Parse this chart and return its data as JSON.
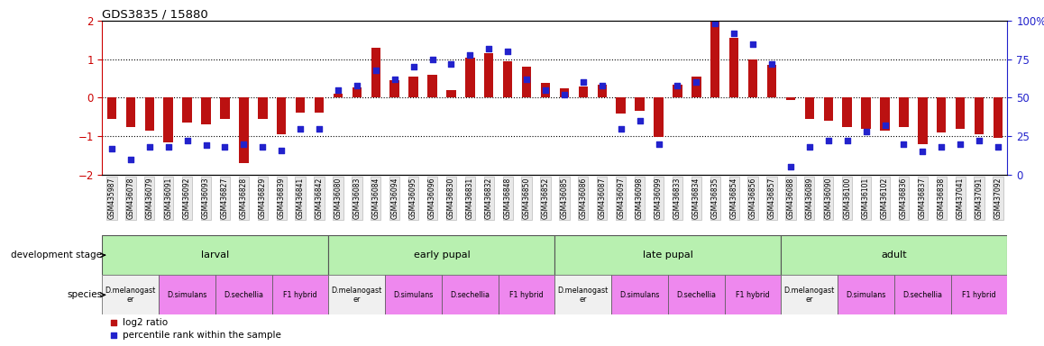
{
  "title": "GDS3835 / 15880",
  "samples": [
    "GSM435987",
    "GSM436078",
    "GSM436079",
    "GSM436091",
    "GSM436092",
    "GSM436093",
    "GSM436827",
    "GSM436828",
    "GSM436829",
    "GSM436839",
    "GSM436841",
    "GSM436842",
    "GSM436080",
    "GSM436083",
    "GSM436084",
    "GSM436094",
    "GSM436095",
    "GSM436096",
    "GSM436830",
    "GSM436831",
    "GSM436832",
    "GSM436848",
    "GSM436850",
    "GSM436852",
    "GSM436085",
    "GSM436086",
    "GSM436087",
    "GSM436097",
    "GSM436098",
    "GSM436099",
    "GSM436833",
    "GSM436834",
    "GSM436835",
    "GSM436854",
    "GSM436856",
    "GSM436857",
    "GSM436088",
    "GSM436089",
    "GSM436090",
    "GSM436100",
    "GSM436101",
    "GSM436102",
    "GSM436836",
    "GSM436837",
    "GSM436838",
    "GSM437041",
    "GSM437091",
    "GSM437092"
  ],
  "log2_values": [
    -0.55,
    -0.75,
    -0.85,
    -1.15,
    -0.65,
    -0.7,
    -0.55,
    -1.7,
    -0.55,
    -0.95,
    -0.38,
    -0.38,
    0.1,
    0.28,
    1.3,
    0.45,
    0.55,
    0.6,
    0.2,
    1.05,
    1.15,
    0.95,
    0.8,
    0.38,
    0.25,
    0.3,
    0.35,
    -0.4,
    -0.35,
    -1.02,
    0.35,
    0.55,
    2.0,
    1.55,
    1.0,
    0.85,
    -0.05,
    -0.55,
    -0.6,
    -0.75,
    -0.8,
    -0.85,
    -0.75,
    -1.2,
    -0.9,
    -0.8,
    -0.95,
    -1.05
  ],
  "percentile_values": [
    17,
    10,
    18,
    18,
    22,
    19,
    18,
    20,
    18,
    16,
    30,
    30,
    55,
    58,
    68,
    62,
    70,
    75,
    72,
    78,
    82,
    80,
    62,
    55,
    52,
    60,
    58,
    30,
    35,
    20,
    58,
    60,
    98,
    92,
    85,
    72,
    5,
    18,
    22,
    22,
    28,
    32,
    20,
    15,
    18,
    20,
    22,
    18
  ],
  "ylim_left": [
    -2.0,
    2.0
  ],
  "yticks_left": [
    -2,
    -1,
    0,
    1,
    2
  ],
  "yticks_right": [
    0,
    25,
    50,
    75,
    100
  ],
  "dev_stages": [
    {
      "label": "larval",
      "start": 0,
      "end": 11
    },
    {
      "label": "early pupal",
      "start": 12,
      "end": 23
    },
    {
      "label": "late pupal",
      "start": 24,
      "end": 35
    },
    {
      "label": "adult",
      "start": 36,
      "end": 47
    }
  ],
  "species_groups": [
    {
      "label": "D.melanogast\ner",
      "start": 0,
      "end": 2,
      "type": "mel"
    },
    {
      "label": "D.simulans",
      "start": 3,
      "end": 5,
      "type": "other"
    },
    {
      "label": "D.sechellia",
      "start": 6,
      "end": 8,
      "type": "other"
    },
    {
      "label": "F1 hybrid",
      "start": 9,
      "end": 11,
      "type": "other"
    },
    {
      "label": "D.melanogast\ner",
      "start": 12,
      "end": 14,
      "type": "mel"
    },
    {
      "label": "D.simulans",
      "start": 15,
      "end": 17,
      "type": "other"
    },
    {
      "label": "D.sechellia",
      "start": 18,
      "end": 20,
      "type": "other"
    },
    {
      "label": "F1 hybrid",
      "start": 21,
      "end": 23,
      "type": "other"
    },
    {
      "label": "D.melanogast\ner",
      "start": 24,
      "end": 26,
      "type": "mel"
    },
    {
      "label": "D.simulans",
      "start": 27,
      "end": 29,
      "type": "other"
    },
    {
      "label": "D.sechellia",
      "start": 30,
      "end": 32,
      "type": "other"
    },
    {
      "label": "F1 hybrid",
      "start": 33,
      "end": 35,
      "type": "other"
    },
    {
      "label": "D.melanogast\ner",
      "start": 36,
      "end": 38,
      "type": "mel"
    },
    {
      "label": "D.simulans",
      "start": 39,
      "end": 41,
      "type": "other"
    },
    {
      "label": "D.sechellia",
      "start": 42,
      "end": 44,
      "type": "other"
    },
    {
      "label": "F1 hybrid",
      "start": 45,
      "end": 47,
      "type": "other"
    }
  ],
  "bar_color": "#bb1111",
  "dot_color": "#2222cc",
  "left_tick_color": "#cc0000",
  "right_tick_color": "#2222cc",
  "dev_stage_color": "#b8f0b0",
  "mel_color": "#f0f0f0",
  "other_color": "#ee88ee",
  "legend_bar_label": "log2 ratio",
  "legend_dot_label": "percentile rank within the sample"
}
